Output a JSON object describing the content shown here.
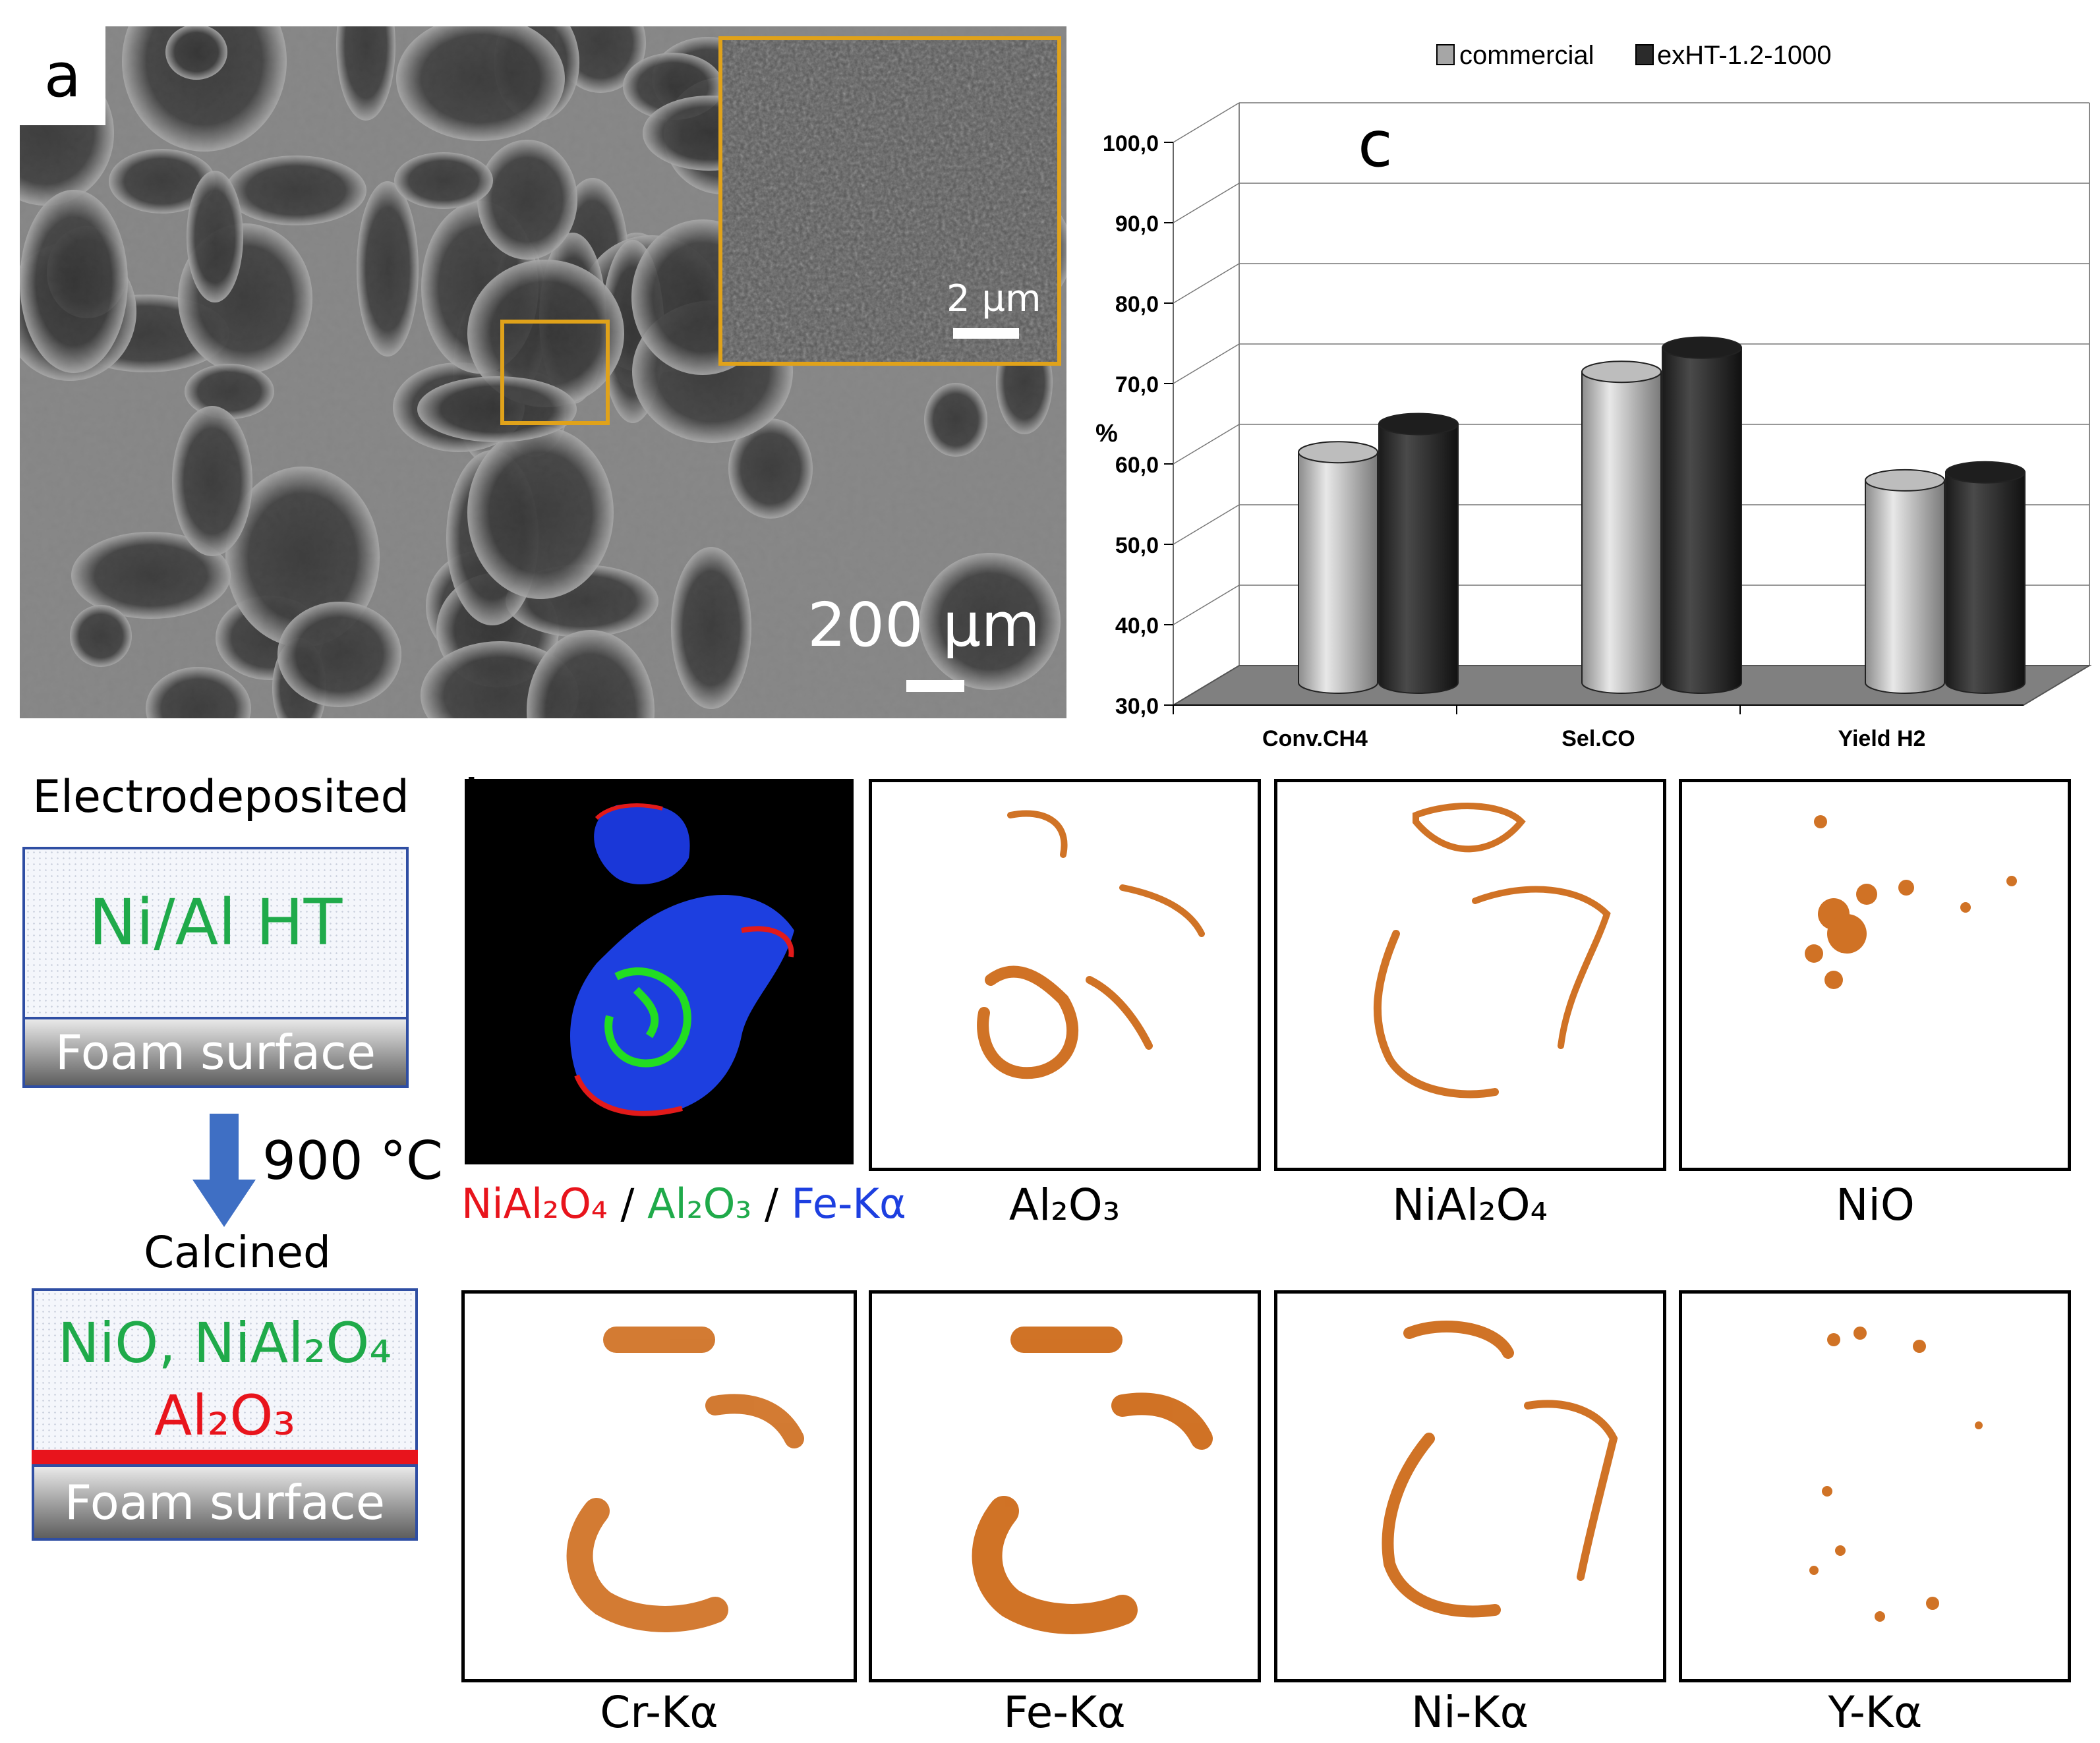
{
  "panels": {
    "a": "a",
    "b": "b",
    "c": "c"
  },
  "sem": {
    "main_scale": "200 µm",
    "inset_scale": "2 µm",
    "inset_border_color": "#e0a21a"
  },
  "schematic": {
    "top_title": "Electrodeposited",
    "top_box_text": "Ni/Al HT",
    "foam_label": "Foam surface",
    "arrow_label": "900 °C",
    "calcined_title": "Calcined",
    "bottom_line1": "NiO, NiAl₂O₄",
    "bottom_line2": "Al₂O₃",
    "bottom_foam_label": "Foam surface",
    "green": "#1faa4a",
    "red": "#e8141c",
    "arrow_color": "#3f6fc4"
  },
  "maps": {
    "composite_label": {
      "part1": "NiAl₂O₄",
      "sep1": " / ",
      "part2": "Al₂O₃",
      "sep2": " / ",
      "part3": "Fe-Kα"
    },
    "top_labels": [
      "Al₂O₃",
      "NiAl₂O₄",
      "NiO"
    ],
    "bottom_labels": [
      "Cr-Kα",
      "Fe-Kα",
      "Ni-Kα",
      "Y-Kα"
    ],
    "heat_color": "#c85a00"
  },
  "chart_data": {
    "type": "bar",
    "title": "",
    "xlabel": "",
    "ylabel": "%",
    "ylim": [
      30,
      100
    ],
    "yticks": [
      "30,0",
      "40,0",
      "50,0",
      "60,0",
      "70,0",
      "80,0",
      "90,0",
      "100,0"
    ],
    "categories": [
      "Conv.CH4",
      "Sel.CO",
      "Yield H2"
    ],
    "series": [
      {
        "name": "commercial",
        "values": [
          59.0,
          69.0,
          55.5
        ],
        "color": "#a6a6a6"
      },
      {
        "name": "exHT-1.2-1000",
        "values": [
          62.5,
          72.0,
          56.5
        ],
        "color": "#2b2b2b"
      }
    ],
    "legend_position": "top-center",
    "grid": true,
    "style": "3d-cylinder"
  }
}
